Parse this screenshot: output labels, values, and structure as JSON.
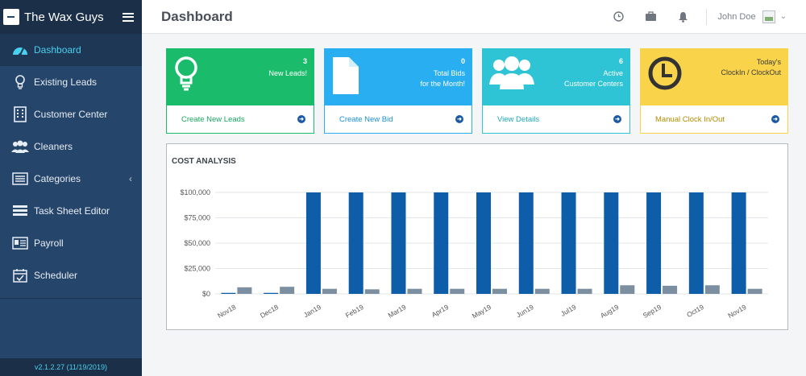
{
  "sidebar": {
    "brand": "The Wax Guys",
    "items": [
      {
        "label": "Dashboard",
        "icon": "dashboard-gauge-icon"
      },
      {
        "label": "Existing Leads",
        "icon": "lightbulb-icon"
      },
      {
        "label": "Customer Center",
        "icon": "building-icon"
      },
      {
        "label": "Cleaners",
        "icon": "users-icon"
      },
      {
        "label": "Categories",
        "icon": "list-icon"
      },
      {
        "label": "Task Sheet Editor",
        "icon": "task-sheet-icon"
      },
      {
        "label": "Payroll",
        "icon": "payroll-icon"
      },
      {
        "label": "Scheduler",
        "icon": "calendar-check-icon"
      }
    ],
    "version": "v2.1.2.27 (11/19/2019)"
  },
  "header": {
    "title": "Dashboard",
    "user_name": "John Doe"
  },
  "cards": [
    {
      "count": "3",
      "label_line1": "New Leads!",
      "label_line2": "",
      "link": "Create New Leads",
      "color": "#1abc6c",
      "icon": "lightbulb-icon"
    },
    {
      "count": "0",
      "label_line1": "Total Bids",
      "label_line2": "for the Month!",
      "link": "Create New Bid",
      "color": "#29aef2",
      "icon": "file-icon"
    },
    {
      "count": "6",
      "label_line1": "Active",
      "label_line2": "Customer Centers",
      "link": "View Details",
      "color": "#2ec4d6",
      "icon": "users-icon"
    },
    {
      "count": "",
      "label_line1": "Today's",
      "label_line2": "ClockIn / ClockOut",
      "link": "Manual Clock In/Out",
      "color": "#f9d34a",
      "icon": "clock-icon"
    }
  ],
  "chart_panel": {
    "title": "COST ANALYSIS"
  },
  "chart_data": {
    "type": "bar",
    "title": "COST ANALYSIS",
    "categories": [
      "Nov18",
      "Dec18",
      "Jan19",
      "Feb19",
      "Mar19",
      "Apr19",
      "May19",
      "Jun19",
      "Jul19",
      "Aug19",
      "Sep19",
      "Oct19",
      "Nov19"
    ],
    "series": [
      {
        "values": [
          1000,
          1000,
          100000,
          100000,
          100000,
          100000,
          100000,
          100000,
          100000,
          100000,
          100000,
          100000,
          100000
        ],
        "color": "#0e5da8"
      },
      {
        "values": [
          6500,
          7000,
          5000,
          4500,
          5000,
          5000,
          5000,
          5000,
          5000,
          8500,
          8000,
          8500,
          5000
        ],
        "color": "#7b8fa1"
      }
    ],
    "y_ticks": [
      "$0",
      "$25,000",
      "$50,000",
      "$75,000",
      "$100,000"
    ],
    "ylim": [
      0,
      100000
    ],
    "grid": true
  }
}
